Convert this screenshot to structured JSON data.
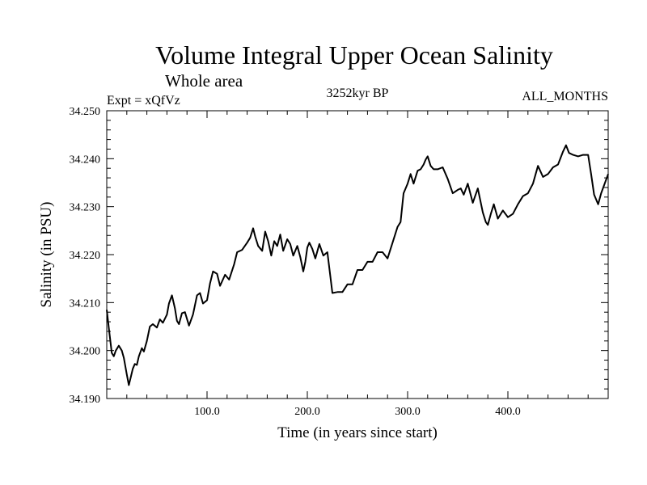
{
  "chart_data": {
    "type": "line",
    "title": "Volume Integral Upper Ocean Salinity",
    "subtitle": "Whole area",
    "experiment_label": "Expt = xQfVz",
    "period_label": "3252kyr BP",
    "months_label": "ALL_MONTHS",
    "xlabel": "Time (in years since start)",
    "ylabel": "Salinity (in PSU)",
    "xlim": [
      0,
      500
    ],
    "ylim": [
      34.19,
      34.25
    ],
    "xticks": [
      100,
      200,
      300,
      400
    ],
    "xtick_labels": [
      "100.0",
      "200.0",
      "300.0",
      "400.0"
    ],
    "yticks": [
      34.19,
      34.2,
      34.21,
      34.22,
      34.23,
      34.24,
      34.25
    ],
    "ytick_labels": [
      "34.190",
      "34.200",
      "34.210",
      "34.220",
      "34.230",
      "34.240",
      "34.250"
    ],
    "grid": false,
    "series": [
      {
        "name": "Salinity",
        "x": [
          0,
          2,
          5,
          7,
          9,
          12,
          15,
          17,
          20,
          22,
          24,
          26,
          28,
          30,
          32,
          35,
          37,
          40,
          43,
          46,
          50,
          53,
          56,
          60,
          62,
          65,
          68,
          70,
          72,
          75,
          78,
          82,
          86,
          88,
          90,
          93,
          96,
          100,
          103,
          106,
          110,
          113,
          118,
          122,
          127,
          130,
          135,
          140,
          143,
          146,
          148,
          151,
          155,
          158,
          161,
          164,
          167,
          170,
          173,
          176,
          180,
          183,
          186,
          190,
          193,
          196,
          198,
          200,
          202,
          205,
          208,
          212,
          216,
          220,
          225,
          230,
          235,
          240,
          245,
          250,
          255,
          260,
          265,
          270,
          275,
          280,
          285,
          290,
          293,
          296,
          300,
          303,
          306,
          310,
          313,
          316,
          318,
          320,
          323,
          326,
          330,
          335,
          340,
          345,
          350,
          353,
          356,
          360,
          365,
          370,
          375,
          378,
          380,
          383,
          386,
          390,
          395,
          400,
          405,
          410,
          415,
          420,
          425,
          430,
          435,
          440,
          445,
          450,
          455,
          458,
          461,
          465,
          470,
          475,
          480,
          483,
          486,
          490,
          493,
          496,
          500
        ],
        "values": [
          34.2085,
          34.2048,
          34.1995,
          34.1988,
          34.2,
          34.201,
          34.2,
          34.1985,
          34.195,
          34.1928,
          34.1945,
          34.1962,
          34.1972,
          34.197,
          34.1988,
          34.2005,
          34.1998,
          34.202,
          34.205,
          34.2055,
          34.2048,
          34.2065,
          34.2058,
          34.2075,
          34.2098,
          34.2115,
          34.2088,
          34.2062,
          34.2055,
          34.2078,
          34.208,
          34.2052,
          34.2075,
          34.2095,
          34.2115,
          34.212,
          34.2098,
          34.2105,
          34.214,
          34.2165,
          34.216,
          34.2135,
          34.2158,
          34.2148,
          34.218,
          34.2205,
          34.221,
          34.2225,
          34.2235,
          34.2255,
          34.2238,
          34.2218,
          34.2208,
          34.2248,
          34.2228,
          34.2198,
          34.2228,
          34.2218,
          34.2242,
          34.2208,
          34.2232,
          34.2222,
          34.2198,
          34.2218,
          34.2195,
          34.2165,
          34.2185,
          34.2215,
          34.2225,
          34.2212,
          34.2192,
          34.2222,
          34.2198,
          34.2205,
          34.212,
          34.2122,
          34.2122,
          34.2138,
          34.2138,
          34.2168,
          34.2168,
          34.2185,
          34.2185,
          34.2205,
          34.2205,
          34.2192,
          34.2225,
          34.2258,
          34.2268,
          34.2328,
          34.2348,
          34.2368,
          34.2348,
          34.2375,
          34.2378,
          34.2388,
          34.2398,
          34.2405,
          34.2385,
          34.2378,
          34.2378,
          34.2382,
          34.2358,
          34.2328,
          34.2335,
          34.2338,
          34.2325,
          34.2348,
          34.2308,
          34.2338,
          34.2288,
          34.2268,
          34.2262,
          34.2285,
          34.2305,
          34.2275,
          34.2292,
          34.2278,
          34.2285,
          34.2305,
          34.2322,
          34.2328,
          34.2348,
          34.2385,
          34.2362,
          34.2368,
          34.2382,
          34.2388,
          34.2415,
          34.2428,
          34.2412,
          34.2408,
          34.2405,
          34.2408,
          34.2408,
          34.2368,
          34.2325,
          34.2305,
          34.2328,
          34.2345,
          34.2368
        ]
      }
    ]
  }
}
